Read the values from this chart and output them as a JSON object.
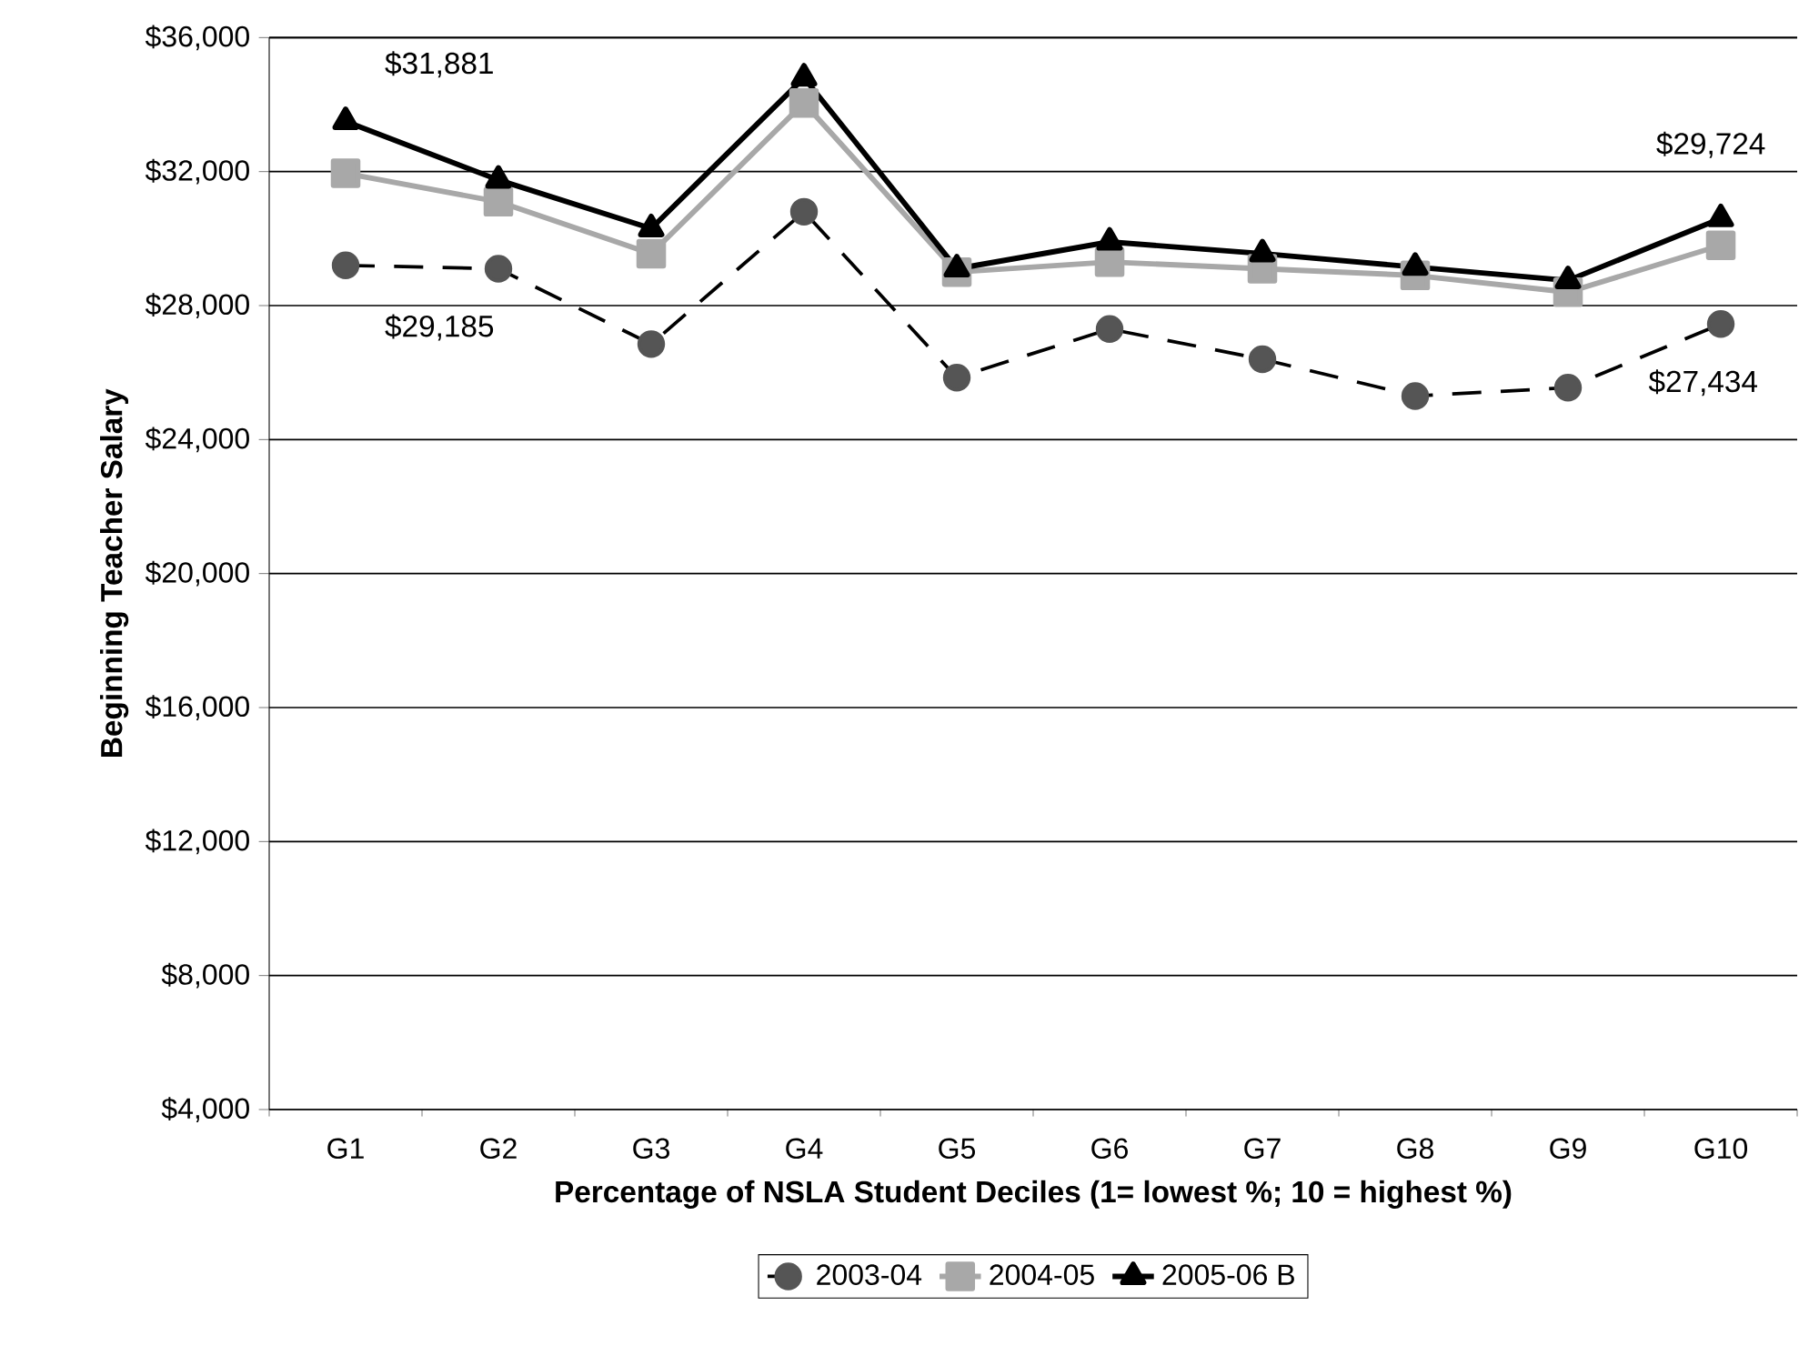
{
  "chart_data": {
    "type": "line",
    "xlabel": "Percentage of NSLA Student Deciles (1= lowest %; 10 = highest %)",
    "ylabel": "Beginning Teacher Salary",
    "categories": [
      "G1",
      "G2",
      "G3",
      "G4",
      "G5",
      "G6",
      "G7",
      "G8",
      "G9",
      "G10"
    ],
    "series": [
      {
        "name": "2003-04",
        "color": "#555555",
        "marker": "circle",
        "line_style": "dashed",
        "values": [
          29200,
          29100,
          26850,
          30800,
          25850,
          27300,
          26400,
          25300,
          25550,
          27450
        ]
      },
      {
        "name": "2004-05",
        "color": "#a8a8a8",
        "marker": "square",
        "line_style": "solid",
        "values": [
          31950,
          31100,
          29550,
          34050,
          29000,
          29300,
          29100,
          28900,
          28400,
          29800
        ]
      },
      {
        "name": "2005-06 B",
        "color": "#000000",
        "marker": "triangle",
        "line_style": "solid",
        "values": [
          33500,
          31750,
          30300,
          34800,
          29100,
          29900,
          29550,
          29150,
          28750,
          30600
        ]
      }
    ],
    "ylim": [
      4000,
      36000
    ],
    "yticks": [
      {
        "value": 4000,
        "label": "$4,000"
      },
      {
        "value": 8000,
        "label": "$8,000"
      },
      {
        "value": 12000,
        "label": "$12,000"
      },
      {
        "value": 16000,
        "label": "$16,000"
      },
      {
        "value": 20000,
        "label": "$20,000"
      },
      {
        "value": 24000,
        "label": "$24,000"
      },
      {
        "value": 28000,
        "label": "$28,000"
      },
      {
        "value": 32000,
        "label": "$32,000"
      },
      {
        "value": 36000,
        "label": "$36,000"
      }
    ],
    "grid": "y",
    "legend": "bottom",
    "annotations": [
      "$31,881",
      "$29,185",
      "$29,724",
      "$27,434"
    ]
  }
}
